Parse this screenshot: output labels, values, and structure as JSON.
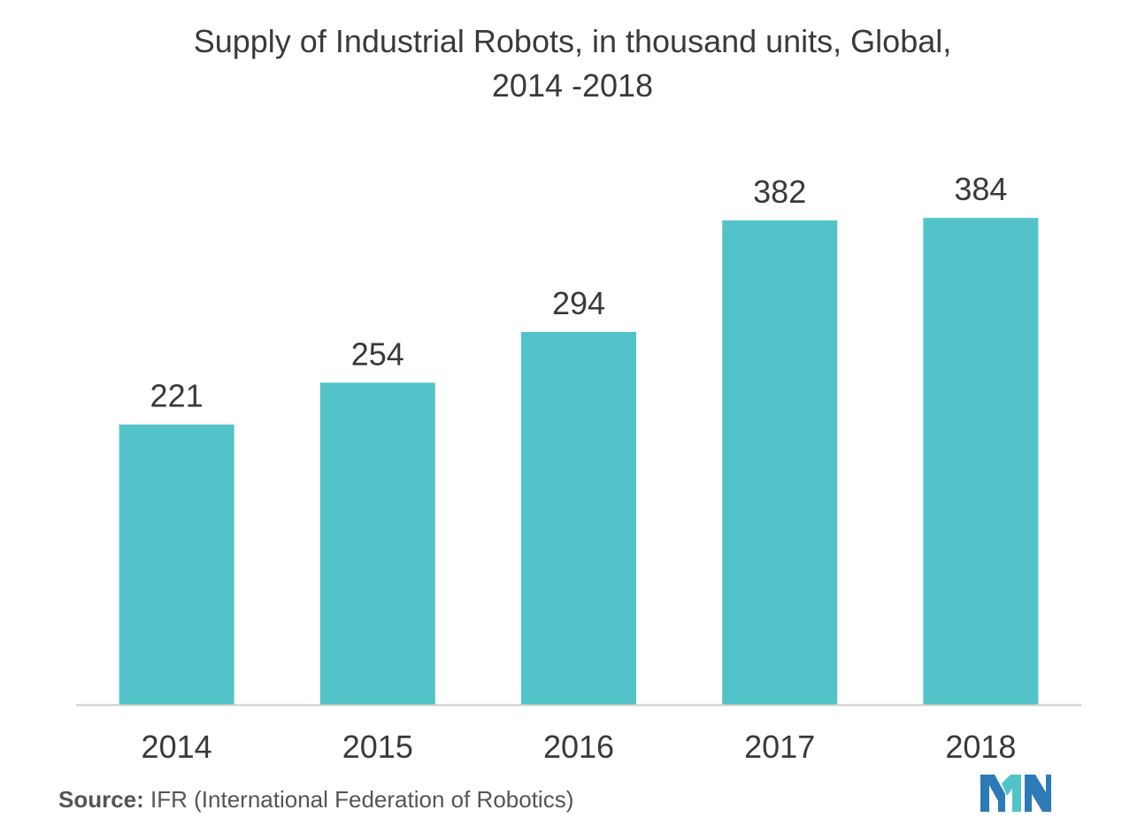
{
  "chart_data": {
    "type": "bar",
    "title": "Supply of Industrial Robots, in thousand units, Global,\n2014 -2018",
    "categories": [
      "2014",
      "2015",
      "2016",
      "2017",
      "2018"
    ],
    "values": [
      221,
      254,
      294,
      382,
      384
    ],
    "xlabel": "",
    "ylabel": "",
    "ylim": [
      0,
      440
    ],
    "grid": false,
    "legend": "none",
    "bar_color": "#52c3c9",
    "axis_color": "#cccccc"
  },
  "source": {
    "key": "Source:",
    "text": " IFR (International Federation of Robotics)"
  },
  "logo": {
    "icon": "mordor-intelligence-logo-icon",
    "colors": [
      "#2c7bb6",
      "#52c3c9"
    ]
  }
}
